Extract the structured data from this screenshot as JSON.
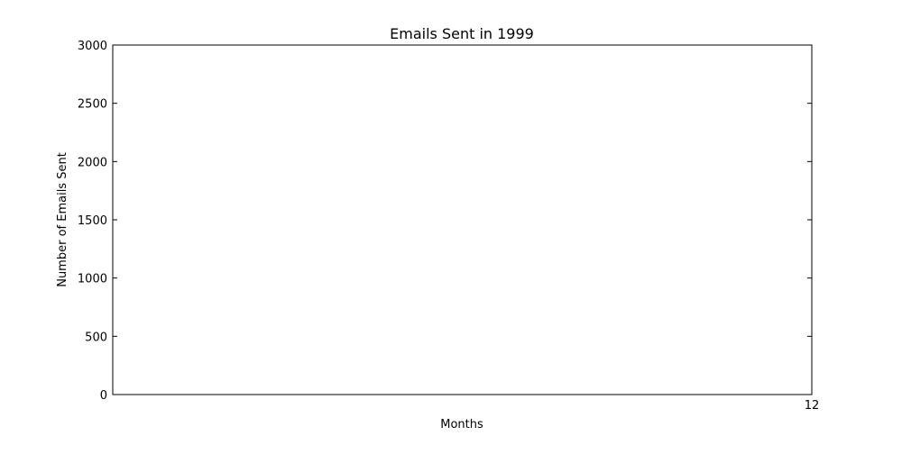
{
  "chart_data": {
    "type": "line",
    "title": "Emails Sent in 1999",
    "xlabel": "Months",
    "ylabel": "Number of Emails Sent",
    "xlim": [
      0,
      12
    ],
    "ylim": [
      0,
      3000
    ],
    "x_ticks": [
      12
    ],
    "y_ticks": [
      0,
      500,
      1000,
      1500,
      2000,
      2500,
      3000
    ],
    "series": [],
    "grid": false,
    "colors": {
      "axes": "#000000",
      "background": "#ffffff"
    }
  }
}
